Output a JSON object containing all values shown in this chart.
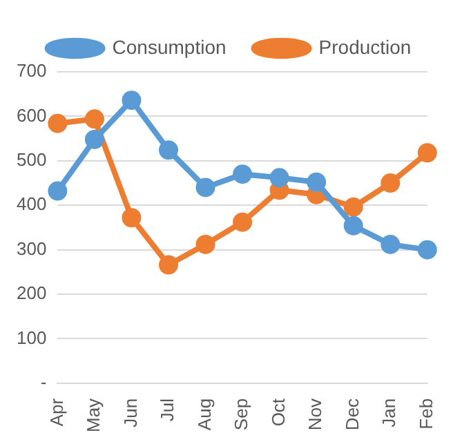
{
  "chart_data": {
    "type": "line",
    "categories": [
      "Apr",
      "May",
      "Jun",
      "Jul",
      "Aug",
      "Sep",
      "Oct",
      "Nov",
      "Dec",
      "Jan",
      "Feb"
    ],
    "series": [
      {
        "name": "Consumption",
        "color": "#5b9bd5",
        "values": [
          432,
          548,
          636,
          524,
          440,
          470,
          462,
          452,
          354,
          312,
          300
        ]
      },
      {
        "name": "Production",
        "color": "#ed7d31",
        "values": [
          584,
          594,
          372,
          266,
          312,
          362,
          434,
          424,
          396,
          450,
          518
        ]
      }
    ],
    "ylim": [
      0,
      700
    ],
    "yticks": [
      {
        "value": 0,
        "label": "-"
      },
      100,
      200,
      300,
      400,
      500,
      600,
      700
    ],
    "grid": "y",
    "legend": "top",
    "marker": "circle",
    "line_style": "solid"
  }
}
